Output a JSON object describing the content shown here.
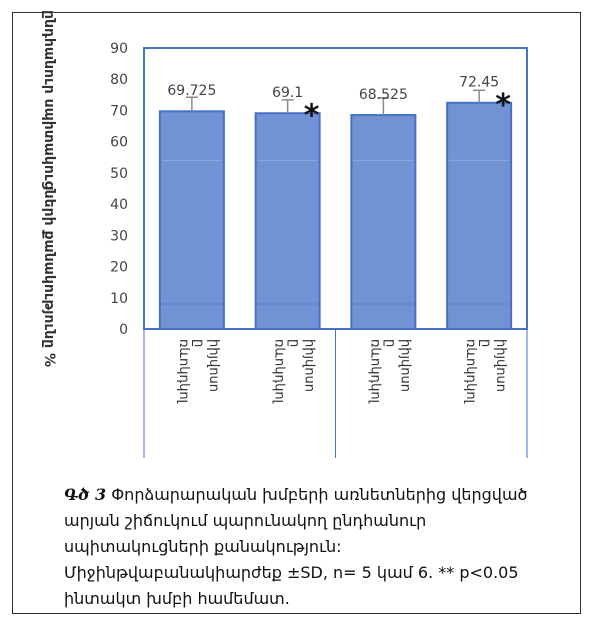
{
  "chart_data": {
    "type": "bar",
    "ylabel": "ընդհանուր սպիտակուցների քանակությունը %",
    "categories": [
      "Ը խմբի",
      "Ը խմբի",
      "Ը խմբի",
      "Ը խմբի"
    ],
    "category_lines": [
      [
        "ռևոկդկոլ",
        "ը",
        "իիյվոսո"
      ],
      [
        "ռևոկդկոլ",
        "ը",
        "իիյվոսո"
      ],
      [
        "ռևոկդկոլ",
        "ը",
        "իիյվոսո"
      ],
      [
        "ռևոկդկոլ",
        "ը",
        "իիյվոսո"
      ]
    ],
    "values": [
      69.725,
      69.1,
      68.525,
      72.45
    ],
    "value_labels": [
      "69.725",
      "69.1",
      "68.525",
      "72.45"
    ],
    "error": [
      4.5,
      4.3,
      5.5,
      4.0
    ],
    "significant": [
      false,
      true,
      false,
      true
    ],
    "significance_marker": "*",
    "ylim": [
      0,
      90
    ],
    "yticks": [
      0,
      10,
      20,
      30,
      40,
      50,
      60,
      70,
      80,
      90
    ],
    "grid": false,
    "bar_color": "#7192d3",
    "bar_edge": "#4472c4",
    "axis_color": "#4a72c4"
  },
  "caption": {
    "fig_label": "Գծ 3",
    "text": " Փորձարարական խմբերի առնետներից վերցված արյան շիճուկում պարունակող ընդհանուր սպիտակուցների քանակություն: Միջինթվաբանակիարժեք ±SD, n= 5 կամ 6. ** p<0.05 ինտակտ խմբի համեմատ."
  }
}
